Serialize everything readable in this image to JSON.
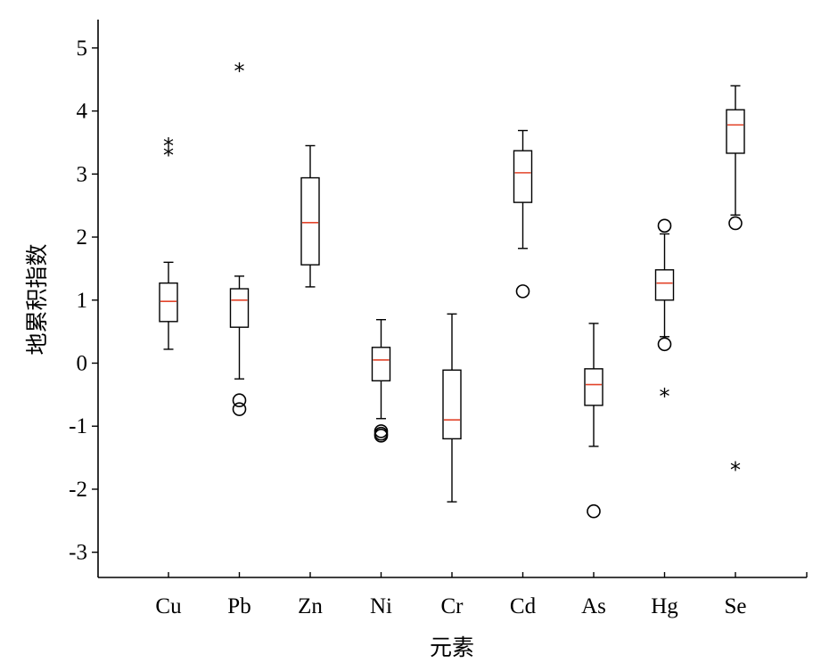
{
  "chart_data": {
    "type": "boxplot",
    "xlabel": "元素",
    "ylabel": "地累积指数",
    "ylim": [
      -3.4,
      5.45
    ],
    "yticks": [
      -3,
      -2,
      -1,
      0,
      1,
      2,
      3,
      4,
      5
    ],
    "grid": false,
    "colors": {
      "median": "#e2442a",
      "stroke": "#000000"
    },
    "categories": [
      "Cu",
      "Pb",
      "Zn",
      "Ni",
      "Cr",
      "Cd",
      "As",
      "Hg",
      "Se"
    ],
    "boxes": [
      {
        "label": "Cu",
        "whisker_low": 0.22,
        "q1": 0.66,
        "median": 0.98,
        "q3": 1.27,
        "whisker_high": 1.6,
        "outliers_circle": [],
        "outliers_star": [
          3.47,
          3.32
        ]
      },
      {
        "label": "Pb",
        "whisker_low": -0.25,
        "q1": 0.57,
        "median": 1.0,
        "q3": 1.18,
        "whisker_high": 1.38,
        "outliers_circle": [
          -0.59,
          -0.73
        ],
        "outliers_star": [
          4.66
        ]
      },
      {
        "label": "Zn",
        "whisker_low": 1.21,
        "q1": 1.56,
        "median": 2.23,
        "q3": 2.94,
        "whisker_high": 3.45,
        "outliers_circle": [],
        "outliers_star": []
      },
      {
        "label": "Ni",
        "whisker_low": -0.88,
        "q1": -0.28,
        "median": 0.05,
        "q3": 0.25,
        "whisker_high": 0.69,
        "outliers_circle": [
          -1.08,
          -1.12,
          -1.15
        ],
        "outliers_star": []
      },
      {
        "label": "Cr",
        "whisker_low": -2.2,
        "q1": -1.2,
        "median": -0.9,
        "q3": -0.11,
        "whisker_high": 0.78,
        "outliers_circle": [],
        "outliers_star": []
      },
      {
        "label": "Cd",
        "whisker_low": 1.82,
        "q1": 2.55,
        "median": 3.02,
        "q3": 3.37,
        "whisker_high": 3.69,
        "outliers_circle": [
          1.14
        ],
        "outliers_star": []
      },
      {
        "label": "As",
        "whisker_low": -1.32,
        "q1": -0.67,
        "median": -0.34,
        "q3": -0.09,
        "whisker_high": 0.63,
        "outliers_circle": [
          -2.35
        ],
        "outliers_star": []
      },
      {
        "label": "Hg",
        "whisker_low": 0.42,
        "q1": 1.0,
        "median": 1.27,
        "q3": 1.48,
        "whisker_high": 2.05,
        "outliers_circle": [
          2.18,
          0.3
        ],
        "outliers_star": [
          -0.5
        ]
      },
      {
        "label": "Se",
        "whisker_low": 2.35,
        "q1": 3.33,
        "median": 3.78,
        "q3": 4.02,
        "whisker_high": 4.4,
        "outliers_circle": [
          2.22
        ],
        "outliers_star": [
          -1.67
        ]
      }
    ]
  }
}
